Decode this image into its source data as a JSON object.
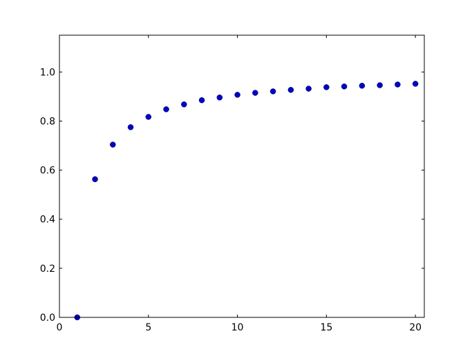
{
  "chart_data": {
    "type": "scatter",
    "title": "",
    "xlabel": "",
    "ylabel": "",
    "xlim": [
      0,
      20.5
    ],
    "ylim": [
      0,
      1.15
    ],
    "xticks": [
      0,
      5,
      10,
      15,
      20
    ],
    "xtick_labels": [
      "0",
      "5",
      "10",
      "15",
      "20"
    ],
    "yticks": [
      0.0,
      0.2,
      0.4,
      0.6,
      0.8,
      1.0
    ],
    "ytick_labels": [
      "0.0",
      "0.2",
      "0.4",
      "0.6",
      "0.8",
      "1.0"
    ],
    "grid": false,
    "marker_color": "#0000cc",
    "x": [
      1,
      2,
      3,
      4,
      5,
      6,
      7,
      8,
      9,
      10,
      11,
      12,
      13,
      14,
      15,
      16,
      17,
      18,
      19,
      20
    ],
    "y": [
      0.0,
      0.563,
      0.704,
      0.775,
      0.817,
      0.848,
      0.868,
      0.885,
      0.896,
      0.907,
      0.915,
      0.921,
      0.927,
      0.932,
      0.938,
      0.941,
      0.944,
      0.946,
      0.949,
      0.952
    ]
  }
}
